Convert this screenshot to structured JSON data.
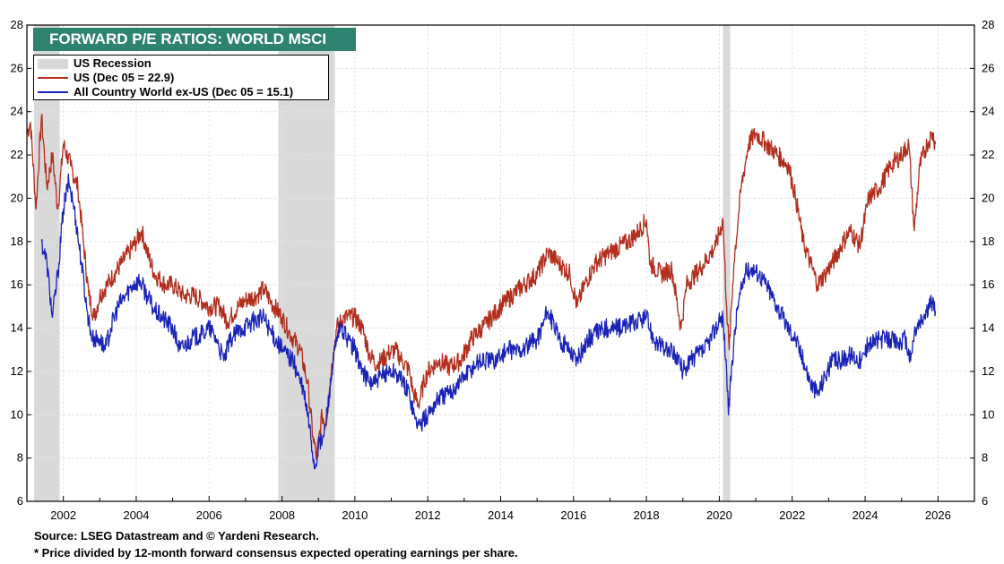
{
  "chart_data": {
    "type": "line",
    "title": "FORWARD P/E RATIOS: WORLD MSCI",
    "ylim": [
      6,
      28
    ],
    "xlim": [
      2001.0,
      2027.0
    ],
    "y_ticks": [
      6,
      8,
      10,
      12,
      14,
      16,
      18,
      20,
      22,
      24,
      26,
      28
    ],
    "x_ticks": [
      2002,
      2004,
      2006,
      2008,
      2010,
      2012,
      2014,
      2016,
      2018,
      2020,
      2022,
      2024,
      2026
    ],
    "grid": true,
    "legend_position": "top-left",
    "recession_label": "US Recession",
    "recessions": [
      [
        2001.2,
        2001.9
      ],
      [
        2007.9,
        2009.45
      ],
      [
        2020.1,
        2020.3
      ]
    ],
    "series": [
      {
        "name": "US (Dec 05 = 22.9)",
        "color": "#b22d1c",
        "points": [
          [
            2001.0,
            23.0
          ],
          [
            2001.1,
            23.5
          ],
          [
            2001.25,
            19.5
          ],
          [
            2001.4,
            23.8
          ],
          [
            2001.55,
            20.5
          ],
          [
            2001.7,
            22.0
          ],
          [
            2001.85,
            19.5
          ],
          [
            2002.0,
            22.5
          ],
          [
            2002.2,
            21.5
          ],
          [
            2002.4,
            20.5
          ],
          [
            2002.55,
            18.0
          ],
          [
            2002.7,
            15.5
          ],
          [
            2002.85,
            14.5
          ],
          [
            2003.0,
            15.5
          ],
          [
            2003.2,
            16.0
          ],
          [
            2003.4,
            16.5
          ],
          [
            2003.6,
            17.0
          ],
          [
            2003.8,
            17.5
          ],
          [
            2004.0,
            18.0
          ],
          [
            2004.15,
            18.5
          ],
          [
            2004.3,
            17.5
          ],
          [
            2004.5,
            16.5
          ],
          [
            2004.8,
            16.0
          ],
          [
            2005.0,
            16.0
          ],
          [
            2005.3,
            15.5
          ],
          [
            2005.6,
            15.5
          ],
          [
            2006.0,
            15.0
          ],
          [
            2006.3,
            15.0
          ],
          [
            2006.5,
            14.3
          ],
          [
            2006.8,
            15.0
          ],
          [
            2007.0,
            15.3
          ],
          [
            2007.3,
            15.5
          ],
          [
            2007.5,
            15.8
          ],
          [
            2007.7,
            15.2
          ],
          [
            2008.0,
            14.5
          ],
          [
            2008.2,
            13.8
          ],
          [
            2008.5,
            13.0
          ],
          [
            2008.7,
            11.5
          ],
          [
            2008.85,
            9.0
          ],
          [
            2008.95,
            8.0
          ],
          [
            2009.1,
            10.0
          ],
          [
            2009.2,
            9.5
          ],
          [
            2009.35,
            12.0
          ],
          [
            2009.5,
            14.0
          ],
          [
            2009.7,
            14.5
          ],
          [
            2010.0,
            14.5
          ],
          [
            2010.2,
            14.0
          ],
          [
            2010.4,
            12.8
          ],
          [
            2010.6,
            12.3
          ],
          [
            2010.9,
            12.8
          ],
          [
            2011.1,
            13.0
          ],
          [
            2011.3,
            12.5
          ],
          [
            2011.5,
            12.0
          ],
          [
            2011.6,
            11.0
          ],
          [
            2011.75,
            10.5
          ],
          [
            2011.9,
            11.5
          ],
          [
            2012.0,
            12.0
          ],
          [
            2012.3,
            12.5
          ],
          [
            2012.6,
            12.2
          ],
          [
            2012.9,
            12.5
          ],
          [
            2013.2,
            13.5
          ],
          [
            2013.6,
            14.2
          ],
          [
            2014.0,
            15.0
          ],
          [
            2014.5,
            15.8
          ],
          [
            2015.0,
            16.5
          ],
          [
            2015.3,
            17.5
          ],
          [
            2015.6,
            17.0
          ],
          [
            2015.9,
            16.5
          ],
          [
            2016.1,
            15.0
          ],
          [
            2016.3,
            16.0
          ],
          [
            2016.6,
            17.0
          ],
          [
            2017.0,
            17.5
          ],
          [
            2017.5,
            18.0
          ],
          [
            2017.8,
            18.5
          ],
          [
            2018.0,
            19.0
          ],
          [
            2018.1,
            17.0
          ],
          [
            2018.4,
            16.5
          ],
          [
            2018.7,
            16.7
          ],
          [
            2018.95,
            14.0
          ],
          [
            2019.1,
            16.0
          ],
          [
            2019.5,
            16.8
          ],
          [
            2019.9,
            17.8
          ],
          [
            2020.1,
            19.0
          ],
          [
            2020.2,
            15.0
          ],
          [
            2020.27,
            13.0
          ],
          [
            2020.4,
            17.0
          ],
          [
            2020.6,
            20.5
          ],
          [
            2020.8,
            22.5
          ],
          [
            2021.0,
            23.0
          ],
          [
            2021.3,
            22.5
          ],
          [
            2021.6,
            22.0
          ],
          [
            2021.9,
            21.5
          ],
          [
            2022.1,
            20.0
          ],
          [
            2022.3,
            18.0
          ],
          [
            2022.5,
            17.0
          ],
          [
            2022.7,
            16.0
          ],
          [
            2022.9,
            16.5
          ],
          [
            2023.1,
            17.0
          ],
          [
            2023.4,
            18.0
          ],
          [
            2023.6,
            18.5
          ],
          [
            2023.85,
            17.8
          ],
          [
            2024.1,
            20.0
          ],
          [
            2024.4,
            20.5
          ],
          [
            2024.7,
            21.5
          ],
          [
            2025.0,
            22.0
          ],
          [
            2025.2,
            22.5
          ],
          [
            2025.35,
            18.5
          ],
          [
            2025.5,
            21.5
          ],
          [
            2025.7,
            22.5
          ],
          [
            2025.85,
            23.0
          ],
          [
            2025.93,
            22.5
          ]
        ]
      },
      {
        "name": "All Country World ex-US (Dec 05 = 15.1)",
        "color": "#1a23b8",
        "points": [
          [
            2001.4,
            18.0
          ],
          [
            2001.55,
            17.0
          ],
          [
            2001.7,
            14.5
          ],
          [
            2001.85,
            16.5
          ],
          [
            2002.0,
            19.5
          ],
          [
            2002.15,
            20.8
          ],
          [
            2002.3,
            19.5
          ],
          [
            2002.5,
            17.0
          ],
          [
            2002.65,
            14.8
          ],
          [
            2002.8,
            13.5
          ],
          [
            2003.0,
            13.5
          ],
          [
            2003.15,
            13.0
          ],
          [
            2003.3,
            14.0
          ],
          [
            2003.5,
            15.0
          ],
          [
            2003.7,
            15.5
          ],
          [
            2003.9,
            16.0
          ],
          [
            2004.1,
            16.2
          ],
          [
            2004.3,
            15.5
          ],
          [
            2004.5,
            14.8
          ],
          [
            2004.7,
            14.5
          ],
          [
            2005.0,
            14.0
          ],
          [
            2005.2,
            13.0
          ],
          [
            2005.5,
            13.5
          ],
          [
            2005.8,
            13.7
          ],
          [
            2006.0,
            14.0
          ],
          [
            2006.2,
            13.5
          ],
          [
            2006.4,
            12.5
          ],
          [
            2006.6,
            13.5
          ],
          [
            2006.9,
            14.0
          ],
          [
            2007.2,
            14.3
          ],
          [
            2007.5,
            14.5
          ],
          [
            2007.7,
            13.8
          ],
          [
            2008.0,
            13.0
          ],
          [
            2008.3,
            12.5
          ],
          [
            2008.6,
            11.0
          ],
          [
            2008.75,
            9.5
          ],
          [
            2008.9,
            7.5
          ],
          [
            2009.0,
            8.5
          ],
          [
            2009.15,
            9.0
          ],
          [
            2009.3,
            11.0
          ],
          [
            2009.45,
            13.0
          ],
          [
            2009.6,
            14.0
          ],
          [
            2009.8,
            13.5
          ],
          [
            2010.0,
            13.0
          ],
          [
            2010.2,
            12.0
          ],
          [
            2010.4,
            11.5
          ],
          [
            2010.6,
            11.5
          ],
          [
            2010.9,
            12.0
          ],
          [
            2011.1,
            12.0
          ],
          [
            2011.3,
            11.5
          ],
          [
            2011.5,
            11.0
          ],
          [
            2011.65,
            9.8
          ],
          [
            2011.8,
            9.5
          ],
          [
            2012.0,
            10.0
          ],
          [
            2012.3,
            10.8
          ],
          [
            2012.6,
            11.0
          ],
          [
            2013.0,
            11.8
          ],
          [
            2013.4,
            12.5
          ],
          [
            2013.8,
            12.5
          ],
          [
            2014.2,
            13.0
          ],
          [
            2014.6,
            13.0
          ],
          [
            2015.0,
            13.5
          ],
          [
            2015.3,
            14.8
          ],
          [
            2015.6,
            13.5
          ],
          [
            2015.9,
            13.0
          ],
          [
            2016.1,
            12.5
          ],
          [
            2016.4,
            13.5
          ],
          [
            2016.8,
            14.0
          ],
          [
            2017.2,
            14.0
          ],
          [
            2017.6,
            14.2
          ],
          [
            2018.0,
            14.5
          ],
          [
            2018.2,
            13.5
          ],
          [
            2018.5,
            13.0
          ],
          [
            2018.8,
            12.8
          ],
          [
            2019.0,
            12.0
          ],
          [
            2019.2,
            12.5
          ],
          [
            2019.6,
            13.0
          ],
          [
            2019.9,
            14.0
          ],
          [
            2020.1,
            14.5
          ],
          [
            2020.2,
            12.0
          ],
          [
            2020.25,
            10.0
          ],
          [
            2020.35,
            12.5
          ],
          [
            2020.5,
            15.0
          ],
          [
            2020.7,
            16.5
          ],
          [
            2020.9,
            16.8
          ],
          [
            2021.1,
            16.5
          ],
          [
            2021.3,
            16.0
          ],
          [
            2021.6,
            15.0
          ],
          [
            2021.9,
            14.0
          ],
          [
            2022.1,
            13.5
          ],
          [
            2022.3,
            12.5
          ],
          [
            2022.5,
            11.5
          ],
          [
            2022.7,
            11.0
          ],
          [
            2022.9,
            11.8
          ],
          [
            2023.1,
            12.5
          ],
          [
            2023.3,
            12.5
          ],
          [
            2023.6,
            12.8
          ],
          [
            2023.9,
            12.5
          ],
          [
            2024.1,
            13.3
          ],
          [
            2024.4,
            13.5
          ],
          [
            2024.7,
            13.5
          ],
          [
            2024.9,
            13.3
          ],
          [
            2025.1,
            13.5
          ],
          [
            2025.25,
            12.5
          ],
          [
            2025.35,
            13.8
          ],
          [
            2025.6,
            14.5
          ],
          [
            2025.85,
            15.2
          ],
          [
            2025.93,
            14.8
          ]
        ]
      }
    ]
  },
  "footer": {
    "source": "Source: LSEG Datastream and © Yardeni Research.",
    "note": "* Price divided by 12-month forward consensus expected operating earnings per share."
  }
}
